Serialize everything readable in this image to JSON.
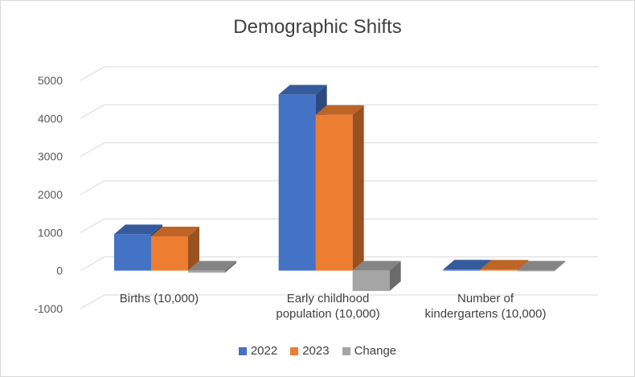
{
  "chart_data": {
    "type": "bar",
    "title": "Demographic Shifts",
    "categories": [
      "Births (10,000)",
      "Early childhood population (10,000)",
      "Number of kindergartens (10,000)"
    ],
    "category_lines": [
      [
        "Births (10,000)"
      ],
      [
        "Early childhood",
        "population (10,000)"
      ],
      [
        "Number of",
        "kindergartens (10,000)"
      ]
    ],
    "series": [
      {
        "name": "2022",
        "values": [
          956,
          4627,
          28.92
        ],
        "color": "#4472C4"
      },
      {
        "name": "2023",
        "values": [
          902,
          4093,
          27.44
        ],
        "color": "#ED7D31"
      },
      {
        "name": "Change",
        "values": [
          -54,
          -534,
          -1.48
        ],
        "color": "#A5A5A5"
      }
    ],
    "ylim": [
      -1000,
      5000
    ],
    "yticks": [
      5000,
      4000,
      3000,
      2000,
      1000,
      0,
      -1000
    ],
    "grid": true,
    "legend_position": "bottom",
    "style": "3d-clustered-column"
  }
}
